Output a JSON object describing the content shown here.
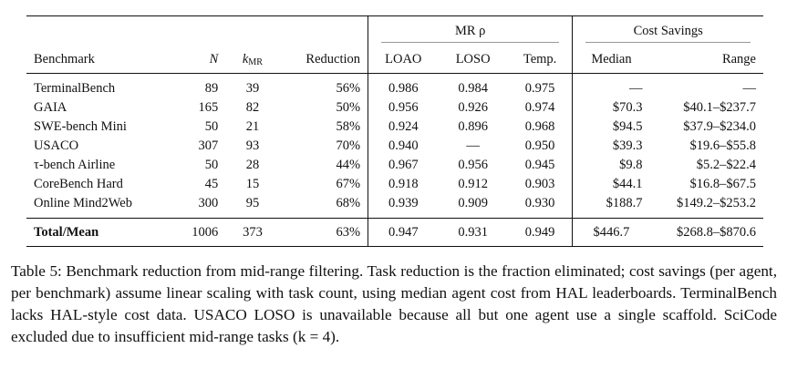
{
  "table": {
    "group_headers": {
      "mr": "MR ρ",
      "cost": "Cost Savings"
    },
    "columns": {
      "benchmark": "Benchmark",
      "n": "N",
      "kmr_base": "k",
      "kmr_sub": "MR",
      "reduction": "Reduction",
      "loao": "LOAO",
      "loso": "LOSO",
      "temp": "Temp.",
      "median": "Median",
      "range": "Range"
    },
    "rows": [
      {
        "benchmark": "TerminalBench",
        "n": "89",
        "kmr": "39",
        "reduction": "56%",
        "loao": "0.986",
        "loso": "0.984",
        "temp": "0.975",
        "median": "—",
        "range": "—"
      },
      {
        "benchmark": "GAIA",
        "n": "165",
        "kmr": "82",
        "reduction": "50%",
        "loao": "0.956",
        "loso": "0.926",
        "temp": "0.974",
        "median": "$70.3",
        "range": "$40.1–$237.7"
      },
      {
        "benchmark": "SWE-bench Mini",
        "n": "50",
        "kmr": "21",
        "reduction": "58%",
        "loao": "0.924",
        "loso": "0.896",
        "temp": "0.968",
        "median": "$94.5",
        "range": "$37.9–$234.0"
      },
      {
        "benchmark": "USACO",
        "n": "307",
        "kmr": "93",
        "reduction": "70%",
        "loao": "0.940",
        "loso": "—",
        "temp": "0.950",
        "median": "$39.3",
        "range": "$19.6–$55.8"
      },
      {
        "benchmark": "τ-bench Airline",
        "n": "50",
        "kmr": "28",
        "reduction": "44%",
        "loao": "0.967",
        "loso": "0.956",
        "temp": "0.945",
        "median": "$9.8",
        "range": "$5.2–$22.4"
      },
      {
        "benchmark": "CoreBench Hard",
        "n": "45",
        "kmr": "15",
        "reduction": "67%",
        "loao": "0.918",
        "loso": "0.912",
        "temp": "0.903",
        "median": "$44.1",
        "range": "$16.8–$67.5"
      },
      {
        "benchmark": "Online Mind2Web",
        "n": "300",
        "kmr": "95",
        "reduction": "68%",
        "loao": "0.939",
        "loso": "0.909",
        "temp": "0.930",
        "median": "$188.7",
        "range": "$149.2–$253.2"
      }
    ],
    "total": {
      "benchmark": "Total/Mean",
      "n": "1006",
      "kmr": "373",
      "reduction": "63%",
      "loao": "0.947",
      "loso": "0.931",
      "temp": "0.949",
      "median": "$446.7",
      "range": "$268.8–$870.6"
    }
  },
  "caption": {
    "text": "Table 5: Benchmark reduction from mid-range filtering. Task reduction is the fraction eliminated; cost savings (per agent, per benchmark) assume linear scaling with task count, using median agent cost from HAL leaderboards. TerminalBench lacks HAL-style cost data. USACO LOSO is unavailable because all but one agent use a single scaffold. SciCode excluded due to insufficient mid-range tasks (k = 4)."
  }
}
